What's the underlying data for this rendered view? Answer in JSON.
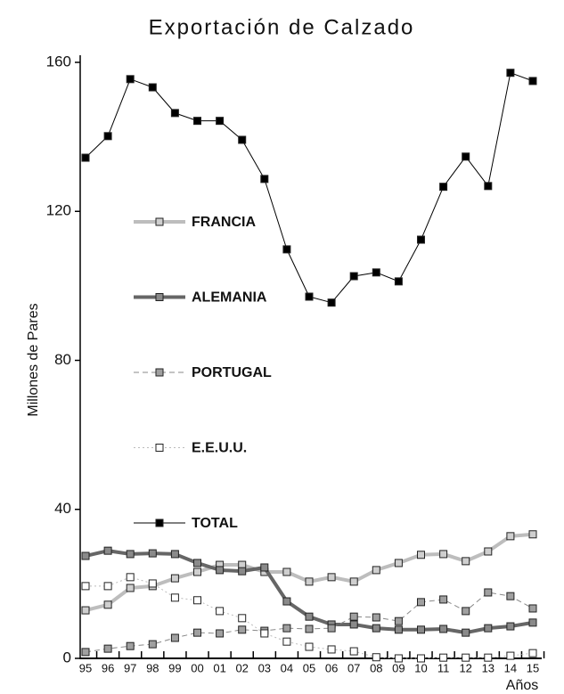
{
  "chart_data": {
    "type": "line",
    "title": "Exportación de Calzado",
    "y_label": "Millones de Pares",
    "x_label": "Años",
    "categories": [
      "95",
      "96",
      "97",
      "98",
      "99",
      "00",
      "01",
      "02",
      "03",
      "04",
      "05",
      "06",
      "07",
      "08",
      "09",
      "10",
      "11",
      "12",
      "13",
      "14",
      "15"
    ],
    "ylim": [
      0,
      160
    ],
    "yticks": [
      0,
      40,
      80,
      120,
      160
    ],
    "legend": "center left",
    "series": [
      {
        "name": "FRANCIA",
        "color": "#bdbdbd",
        "marker_fill": "#cfcfcf",
        "width": 4,
        "dash": "solid",
        "values": [
          12.9,
          14.4,
          18.9,
          19.4,
          21.5,
          23.2,
          25.1,
          25.1,
          23.2,
          23.2,
          20.6,
          21.8,
          20.6,
          23.7,
          25.6,
          27.8,
          28.0,
          26.1,
          28.7,
          32.8,
          33.3
        ]
      },
      {
        "name": "ALEMANIA",
        "color": "#666666",
        "marker_fill": "#8a8a8a",
        "width": 4,
        "dash": "solid",
        "values": [
          27.5,
          28.9,
          28.0,
          28.2,
          28.0,
          25.6,
          23.7,
          23.4,
          24.4,
          15.3,
          11.2,
          9.1,
          9.1,
          8.1,
          7.7,
          7.7,
          7.9,
          6.9,
          8.1,
          8.6,
          9.6
        ]
      },
      {
        "name": "PORTUGAL",
        "color": "#888888",
        "marker_fill": "#a0a0a0",
        "width": 1,
        "dash": "dashed",
        "values": [
          1.7,
          2.6,
          3.3,
          3.8,
          5.5,
          6.9,
          6.7,
          7.7,
          7.4,
          8.1,
          7.9,
          8.1,
          11.2,
          11.0,
          10.0,
          15.1,
          15.8,
          12.7,
          17.7,
          16.7,
          13.4
        ]
      },
      {
        "name": "E.E.U.U.",
        "color": "#bbbbbb",
        "marker_fill": "#ffffff",
        "width": 1,
        "dash": "dotted",
        "values": [
          19.4,
          19.4,
          21.8,
          20.1,
          16.3,
          15.6,
          12.7,
          10.8,
          6.7,
          4.5,
          3.1,
          2.4,
          1.9,
          0.3,
          0,
          0,
          0.2,
          0.2,
          0.2,
          0.7,
          1.4
        ]
      },
      {
        "name": "TOTAL",
        "color": "#000000",
        "marker_fill": "#000000",
        "width": 1,
        "dash": "solid",
        "values": [
          134.4,
          140.2,
          155.5,
          153.3,
          146.4,
          144.3,
          144.3,
          139.2,
          128.7,
          109.8,
          97.1,
          95.5,
          102.6,
          103.6,
          101.2,
          112.4,
          126.6,
          134.7,
          126.8,
          157.2,
          155.0
        ]
      }
    ]
  }
}
